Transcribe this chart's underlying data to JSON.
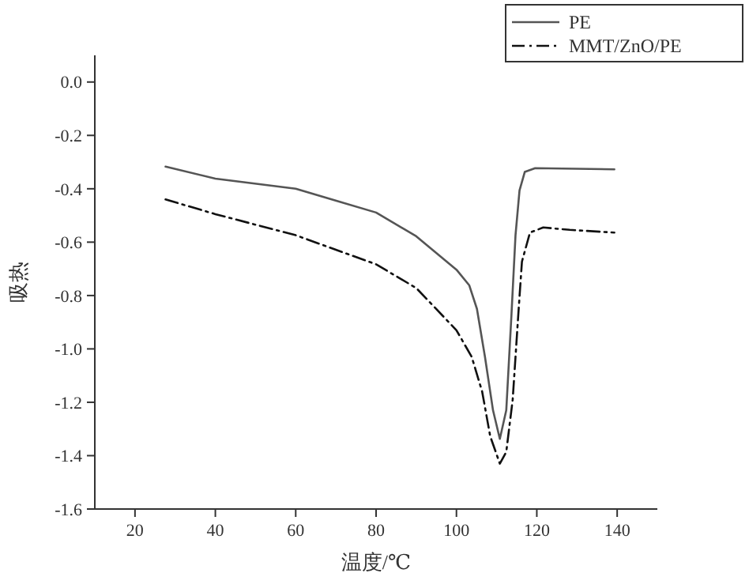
{
  "chart_data": {
    "type": "line",
    "xlabel": "温度/℃",
    "ylabel": "吸热",
    "xlim": [
      10,
      150
    ],
    "xticks": [
      20,
      40,
      60,
      80,
      100,
      120,
      140
    ],
    "ylim": [
      -1.6,
      0.1
    ],
    "yticks": [
      {
        "value": 0,
        "label": "0.0"
      },
      -0.2,
      -0.4,
      -0.6,
      -0.8,
      {
        "value": -1,
        "label": "-1.0"
      },
      -1.2,
      -1.4,
      -1.6
    ],
    "legend": "top right",
    "grid": false,
    "series": [
      {
        "name": "PE",
        "color": "#555555",
        "line_style": "solid",
        "x": [
          27.6,
          40,
          60,
          80,
          90,
          100,
          103.2,
          105.1,
          107.1,
          109.1,
          110.8,
          112.4,
          113.7,
          114.7,
          115.7,
          117,
          119.6,
          139.3
        ],
        "values": [
          -0.317,
          -0.362,
          -0.4,
          -0.489,
          -0.578,
          -0.703,
          -0.762,
          -0.85,
          -1.03,
          -1.23,
          -1.337,
          -1.23,
          -0.87,
          -0.574,
          -0.406,
          -0.337,
          -0.323,
          -0.327
        ]
      },
      {
        "name": "MMT/ZnO/PE",
        "color": "#111111",
        "line_style": "dashdot",
        "x": [
          27.6,
          40,
          60,
          80,
          90,
          100,
          103.8,
          106.4,
          108.4,
          110.8,
          112.4,
          114,
          115.4,
          116.3,
          118.3,
          121.6,
          128.2,
          139.3
        ],
        "values": [
          -0.44,
          -0.495,
          -0.574,
          -0.683,
          -0.772,
          -0.93,
          -1.03,
          -1.16,
          -1.327,
          -1.43,
          -1.386,
          -1.19,
          -0.87,
          -0.673,
          -0.564,
          -0.545,
          -0.554,
          -0.564
        ]
      }
    ]
  }
}
